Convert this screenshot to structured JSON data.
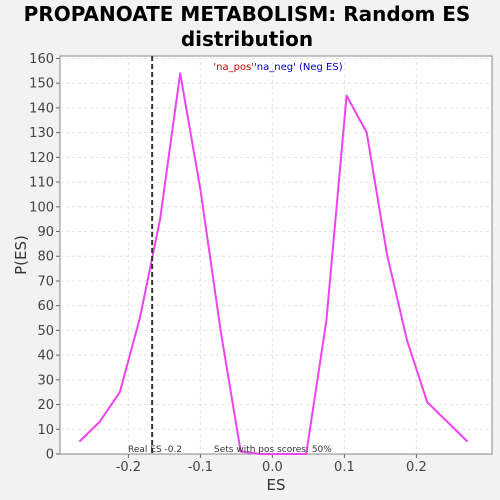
{
  "chart_data": {
    "type": "line",
    "title_line1": "PROPANOATE METABOLISM: Random ES",
    "title_line2": "distribution",
    "xlabel": "ES",
    "ylabel": "P(ES)",
    "xlim": [
      -0.295,
      0.305
    ],
    "ylim": [
      0,
      161
    ],
    "x_ticks": [
      -0.2,
      -0.1,
      0.0,
      0.1,
      0.2
    ],
    "x_tick_labels": [
      "-0.2",
      "-0.1",
      "0.0",
      "0.1",
      "0.2"
    ],
    "y_ticks": [
      0,
      10,
      20,
      30,
      40,
      50,
      60,
      70,
      80,
      90,
      100,
      110,
      120,
      130,
      140,
      150,
      160
    ],
    "y_tick_labels": [
      "0",
      "10",
      "20",
      "30",
      "40",
      "50",
      "60",
      "70",
      "80",
      "90",
      "100",
      "110",
      "120",
      "130",
      "140",
      "150",
      "160"
    ],
    "grid": true,
    "legend": {
      "placement": "top-center",
      "pos_label": "'na_pos'",
      "neg_label": "'na_neg' (Neg ES)",
      "pos_color": "#cc0000",
      "neg_color": "#0000cc"
    },
    "series": [
      {
        "color": "#ee44ee",
        "x": [
          -0.268,
          -0.24,
          -0.212,
          -0.184,
          -0.156,
          -0.128,
          -0.1,
          -0.072,
          -0.044,
          -0.016,
          0.012,
          0.04,
          0.047,
          0.075,
          0.103,
          0.131,
          0.159,
          0.187,
          0.215,
          0.243,
          0.271
        ],
        "y": [
          5,
          13,
          25,
          55,
          95,
          154,
          107,
          50,
          1,
          0,
          0,
          0,
          0,
          54,
          145,
          130,
          81,
          46,
          21,
          13,
          5
        ]
      }
    ],
    "real_es": {
      "value": -0.167,
      "label": "Real ES -0.2",
      "color": "#333333"
    },
    "annotation": "Sets with pos scores: 50%"
  }
}
